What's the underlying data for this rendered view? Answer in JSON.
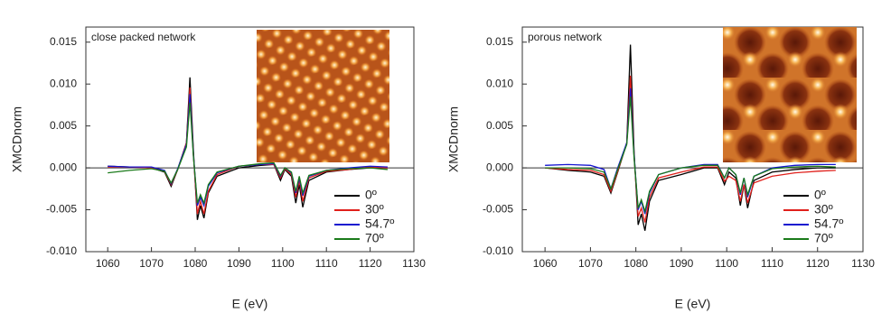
{
  "chart_data": [
    {
      "type": "line",
      "annotation": "close packed network",
      "xlabel": "E (eV)",
      "ylabel": "XMCDnorm",
      "xlim": [
        1055,
        1130
      ],
      "xticks": [
        1060,
        1070,
        1080,
        1090,
        1100,
        1110,
        1120,
        1130
      ],
      "ylim": [
        -0.01,
        0.0168
      ],
      "yticks": [
        {
          "value": -0.01,
          "label": "-0.010"
        },
        {
          "value": -0.005,
          "label": "-0.005"
        },
        {
          "value": 0,
          "label": "0.000"
        },
        {
          "value": 0.005,
          "label": "0.005"
        },
        {
          "value": 0.01,
          "label": "0.010"
        },
        {
          "value": 0.015,
          "label": "0.015"
        }
      ],
      "legend": "lower right",
      "x": [
        1060,
        1065,
        1070,
        1073,
        1074.5,
        1076,
        1078,
        1078.8,
        1079.6,
        1080.5,
        1081.2,
        1082,
        1083,
        1085,
        1090,
        1095,
        1098,
        1099.5,
        1100.5,
        1102,
        1103,
        1103.8,
        1104.6,
        1106,
        1110,
        1115,
        1120,
        1124
      ],
      "series": [
        {
          "name": "0º",
          "color": "#000000",
          "values": [
            0.0002,
            0.0001,
            0,
            -0.0005,
            -0.0022,
            -0.0002,
            0.003,
            0.0108,
            0.002,
            -0.0062,
            -0.0045,
            -0.006,
            -0.003,
            -0.001,
            0,
            0.0003,
            0.0004,
            -0.0015,
            -0.0002,
            -0.001,
            -0.0042,
            -0.002,
            -0.0047,
            -0.0015,
            -0.0005,
            -0.0002,
            0,
            0
          ]
        },
        {
          "name": "30º",
          "color": "#e0201b",
          "values": [
            0.0001,
            0.0001,
            0,
            -0.0004,
            -0.002,
            -0.0002,
            0.003,
            0.0096,
            0.0015,
            -0.0055,
            -0.004,
            -0.0055,
            -0.0028,
            -0.0008,
            0.0002,
            0.0004,
            0.0004,
            -0.0012,
            -0.0001,
            -0.0008,
            -0.0035,
            -0.0015,
            -0.004,
            -0.0012,
            -0.0004,
            -0.0002,
            0.0001,
            0
          ]
        },
        {
          "name": "54.7º",
          "color": "#1515d0",
          "values": [
            0.0002,
            0.0001,
            0.0001,
            -0.0003,
            -0.0019,
            -0.0001,
            0.0028,
            0.0088,
            0.0015,
            -0.0045,
            -0.0035,
            -0.0045,
            -0.0022,
            -0.0006,
            0.0002,
            0.0004,
            0.0005,
            -0.001,
            0,
            -0.0006,
            -0.003,
            -0.0012,
            -0.0033,
            -0.001,
            -0.0003,
            0,
            0.0002,
            0.0001
          ]
        },
        {
          "name": "70º",
          "color": "#1a7a1a",
          "values": [
            -0.0006,
            -0.0003,
            -0.0001,
            -0.0004,
            -0.0018,
            -0.0002,
            0.0025,
            0.0078,
            0.0013,
            -0.0042,
            -0.0032,
            -0.0042,
            -0.002,
            -0.0005,
            0.0002,
            0.0005,
            0.0006,
            -0.0009,
            0,
            -0.0005,
            -0.0028,
            -0.001,
            -0.003,
            -0.0009,
            -0.0003,
            -0.0001,
            0,
            -0.0002
          ]
        }
      ]
    },
    {
      "type": "line",
      "annotation": "porous network",
      "xlabel": "E (eV)",
      "ylabel": "XMCDnorm",
      "xlim": [
        1055,
        1130
      ],
      "xticks": [
        1060,
        1070,
        1080,
        1090,
        1100,
        1110,
        1120,
        1130
      ],
      "ylim": [
        -0.01,
        0.0168
      ],
      "yticks": [
        {
          "value": -0.01,
          "label": "-0.010"
        },
        {
          "value": -0.005,
          "label": "-0.005"
        },
        {
          "value": 0,
          "label": "0.000"
        },
        {
          "value": 0.005,
          "label": "0.005"
        },
        {
          "value": 0.01,
          "label": "0.010"
        },
        {
          "value": 0.015,
          "label": "0.015"
        }
      ],
      "legend": "lower right",
      "x": [
        1060,
        1065,
        1070,
        1073,
        1074.5,
        1076,
        1078,
        1078.8,
        1079.6,
        1080.5,
        1081.2,
        1082,
        1083,
        1085,
        1090,
        1095,
        1098,
        1099.5,
        1100.5,
        1102,
        1103,
        1103.8,
        1104.6,
        1106,
        1110,
        1115,
        1120,
        1124
      ],
      "series": [
        {
          "name": "0º",
          "color": "#000000",
          "values": [
            0,
            -0.0003,
            -0.0005,
            -0.001,
            -0.003,
            -0.0005,
            0.003,
            0.0147,
            0.002,
            -0.0068,
            -0.0055,
            -0.0075,
            -0.004,
            -0.0015,
            -0.0008,
            0,
            0,
            -0.002,
            -0.0005,
            -0.0012,
            -0.0045,
            -0.002,
            -0.0048,
            -0.0015,
            -0.0005,
            -0.0002,
            0,
            0
          ]
        },
        {
          "name": "30º",
          "color": "#e0201b",
          "values": [
            0,
            -0.0002,
            -0.0003,
            -0.0008,
            -0.0028,
            -0.0004,
            0.003,
            0.011,
            0.0015,
            -0.0058,
            -0.0048,
            -0.0065,
            -0.0035,
            -0.0012,
            -0.0005,
            0.0001,
            0.0001,
            -0.0016,
            -0.001,
            -0.0015,
            -0.004,
            -0.002,
            -0.0042,
            -0.0018,
            -0.001,
            -0.0006,
            -0.0004,
            -0.0003
          ]
        },
        {
          "name": "54.7º",
          "color": "#1515d0",
          "values": [
            0.0003,
            0.0004,
            0.0003,
            -0.0002,
            -0.0025,
            0,
            0.003,
            0.0095,
            0.0015,
            -0.005,
            -0.004,
            -0.0055,
            -0.003,
            -0.0008,
            0,
            0.0004,
            0.0004,
            -0.0012,
            0,
            -0.0008,
            -0.0032,
            -0.0012,
            -0.0035,
            -0.001,
            0,
            0.0003,
            0.0004,
            0.0004
          ]
        },
        {
          "name": "70º",
          "color": "#1a7a1a",
          "values": [
            0,
            0,
            -0.0001,
            -0.0005,
            -0.0025,
            -0.0002,
            0.0028,
            0.0085,
            0.0012,
            -0.0048,
            -0.0038,
            -0.0052,
            -0.0028,
            -0.0008,
            0,
            0.0003,
            0.0003,
            -0.0012,
            0,
            -0.0008,
            -0.003,
            -0.0012,
            -0.0032,
            -0.001,
            -0.0001,
            0.0001,
            0.0002,
            0.0001
          ]
        }
      ]
    }
  ]
}
